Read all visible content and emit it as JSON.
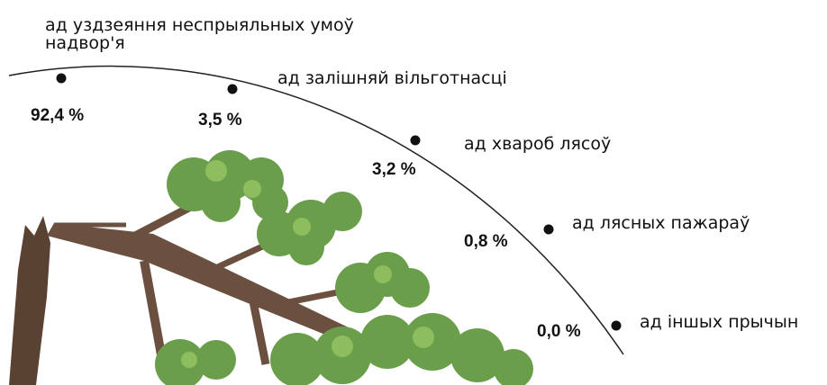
{
  "items": [
    {
      "label": "ад уздзеяння неспрыяльных умоў надвор'я",
      "value": "92,4 %"
    },
    {
      "label": "ад залішняй вільготнасці",
      "value": "3,5 %"
    },
    {
      "label": "ад хвароб лясоў",
      "value": "3,2 %"
    },
    {
      "label": "ад лясных пажараў",
      "value": "0,8 %"
    },
    {
      "label": "ад іншых прычын",
      "value": "0,0 %"
    }
  ]
}
